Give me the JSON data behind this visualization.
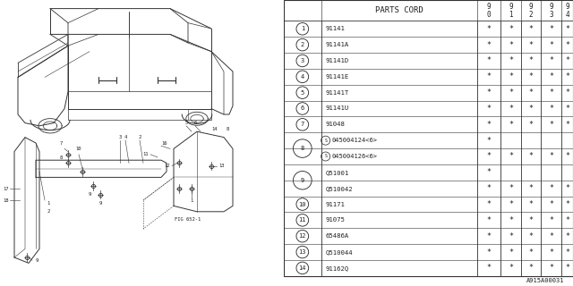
{
  "bg_color": "#ffffff",
  "line_color": "#333333",
  "text_color": "#222222",
  "footer": "A915A00031",
  "col_headers_years": [
    "9\n0",
    "9\n1",
    "9\n2",
    "9\n3",
    "9\n4"
  ],
  "rows": [
    {
      "num": "1",
      "part": "91141",
      "8a": false,
      "8b": false,
      "9a": false,
      "9b": false,
      "cols": [
        "*",
        "*",
        "*",
        "*",
        "*"
      ]
    },
    {
      "num": "2",
      "part": "91141A",
      "cols": [
        "*",
        "*",
        "*",
        "*",
        "*"
      ]
    },
    {
      "num": "3",
      "part": "91141D",
      "cols": [
        "*",
        "*",
        "*",
        "*",
        "*"
      ]
    },
    {
      "num": "4",
      "part": "91141E",
      "cols": [
        "*",
        "*",
        "*",
        "*",
        "*"
      ]
    },
    {
      "num": "5",
      "part": "91141T",
      "cols": [
        "*",
        "*",
        "*",
        "*",
        "*"
      ]
    },
    {
      "num": "6",
      "part": "91141U",
      "cols": [
        "*",
        "*",
        "*",
        "*",
        "*"
      ]
    },
    {
      "num": "7",
      "part": "91048",
      "cols": [
        "*",
        "*",
        "*",
        "*",
        "*"
      ]
    },
    {
      "num": "8",
      "part8a": "S045004124<6>",
      "part8b": "S045004126<6>",
      "cols8a": [
        "*",
        " ",
        " ",
        " ",
        " "
      ],
      "cols8b": [
        "*",
        "*",
        "*",
        "*",
        "*"
      ]
    },
    {
      "num": "9",
      "part9a": "Q51001",
      "part9b": "Q510042",
      "cols9a": [
        "*",
        " ",
        " ",
        " ",
        " "
      ],
      "cols9b": [
        "*",
        "*",
        "*",
        "*",
        "*"
      ]
    },
    {
      "num": "10",
      "part": "91171",
      "cols": [
        "*",
        "*",
        "*",
        "*",
        "*"
      ]
    },
    {
      "num": "11",
      "part": "91075",
      "cols": [
        "*",
        "*",
        "*",
        "*",
        "*"
      ]
    },
    {
      "num": "12",
      "part": "65486A",
      "cols": [
        "*",
        "*",
        "*",
        "*",
        "*"
      ]
    },
    {
      "num": "13",
      "part": "Q510044",
      "cols": [
        "*",
        "*",
        "*",
        "*",
        "*"
      ]
    },
    {
      "num": "14",
      "part": "91162Q",
      "cols": [
        "*",
        "*",
        "*",
        "*",
        "*"
      ]
    }
  ]
}
